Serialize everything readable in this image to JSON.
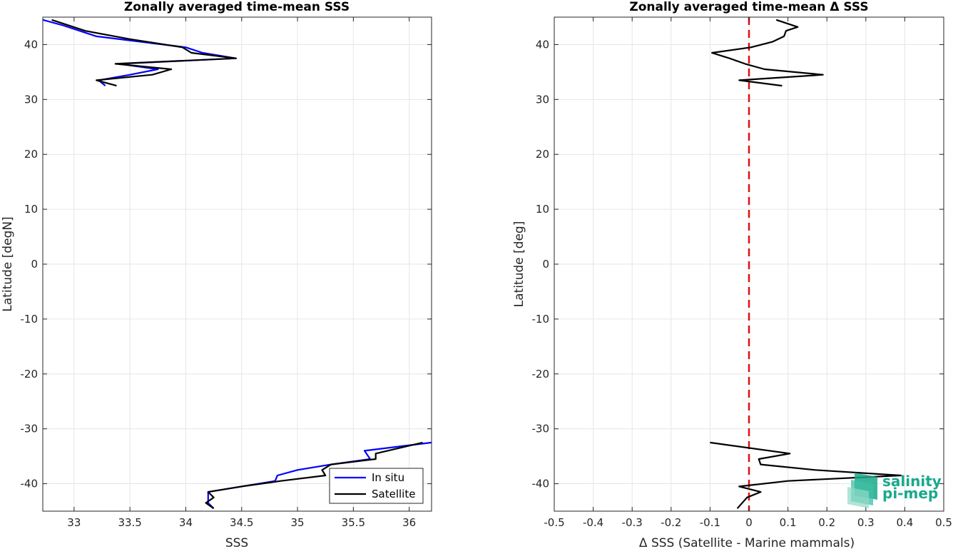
{
  "chart_data": [
    {
      "type": "line",
      "title": "Zonally averaged time-mean SSS",
      "xlabel": "SSS",
      "ylabel": "Latitude [degN]",
      "xlim": [
        32.72,
        36.2
      ],
      "ylim": [
        -45,
        45
      ],
      "xticks": [
        "33",
        "33.5",
        "34",
        "34.5",
        "35",
        "35.5",
        "36"
      ],
      "yticks": [
        "40",
        "30",
        "20",
        "10",
        "0",
        "-10",
        "-20",
        "-30",
        "-40"
      ],
      "grid": true,
      "legend_placement": "bottom-right",
      "series": [
        {
          "name": "In situ",
          "color": "#0000ff",
          "segments": [
            [
              [
                33.28,
                32.5
              ],
              [
                33.22,
                33.5
              ],
              [
                33.5,
                34.5
              ],
              [
                33.75,
                35.5
              ],
              [
                33.4,
                36.5
              ],
              [
                34.45,
                37.5
              ],
              [
                34.15,
                38.5
              ],
              [
                34.0,
                39.5
              ],
              [
                33.2,
                41.5
              ],
              [
                32.9,
                43.5
              ],
              [
                32.72,
                44.5
              ]
            ],
            [
              [
                36.2,
                -32.5
              ],
              [
                35.6,
                -34
              ],
              [
                35.65,
                -35.5
              ],
              [
                35.3,
                -36.5
              ],
              [
                35.0,
                -37.5
              ],
              [
                34.82,
                -38.5
              ],
              [
                34.8,
                -39.5
              ],
              [
                34.5,
                -40.5
              ],
              [
                34.2,
                -41.5
              ],
              [
                34.2,
                -43.5
              ],
              [
                34.25,
                -44.5
              ]
            ]
          ]
        },
        {
          "name": "Satellite",
          "color": "#000000",
          "segments": [
            [
              [
                33.38,
                32.5
              ],
              [
                33.2,
                33.5
              ],
              [
                33.7,
                34.5
              ],
              [
                33.87,
                35.5
              ],
              [
                33.37,
                36.5
              ],
              [
                34.45,
                37.5
              ],
              [
                34.05,
                38.5
              ],
              [
                33.97,
                39.5
              ],
              [
                33.5,
                41
              ],
              [
                33.1,
                42.5
              ],
              [
                32.8,
                44.5
              ]
            ],
            [
              [
                36.12,
                -32.5
              ],
              [
                35.7,
                -34.5
              ],
              [
                35.7,
                -35.5
              ],
              [
                35.3,
                -36.5
              ],
              [
                35.22,
                -37.5
              ],
              [
                35.25,
                -38.5
              ],
              [
                34.85,
                -39.5
              ],
              [
                34.5,
                -40.5
              ],
              [
                34.2,
                -41.5
              ],
              [
                34.25,
                -42.5
              ],
              [
                34.18,
                -43.5
              ],
              [
                34.25,
                -44.5
              ]
            ]
          ]
        }
      ]
    },
    {
      "type": "line",
      "title": "Zonally averaged time-mean Δ SSS",
      "xlabel": "Δ SSS (Satellite - Marine mammals)",
      "ylabel": "Latitude [deg]",
      "xlim": [
        -0.5,
        0.5
      ],
      "ylim": [
        -45,
        45
      ],
      "xticks": [
        "-0.5",
        "-0.4",
        "-0.3",
        "-0.2",
        "-0.1",
        "0",
        "0.1",
        "0.2",
        "0.3",
        "0.4",
        "0.5"
      ],
      "yticks": [
        "40",
        "30",
        "20",
        "10",
        "0",
        "-10",
        "-20",
        "-30",
        "-40"
      ],
      "grid": true,
      "reference_line": {
        "x": 0,
        "color": "#e01010",
        "style": "dashed"
      },
      "series": [
        {
          "color": "#000000",
          "segments": [
            [
              [
                0.085,
                32.5
              ],
              [
                -0.025,
                33.5
              ],
              [
                0.19,
                34.5
              ],
              [
                0.04,
                35.5
              ],
              [
                -0.01,
                36.5
              ],
              [
                -0.05,
                37.5
              ],
              [
                -0.095,
                38.5
              ],
              [
                0.005,
                39.5
              ],
              [
                0.06,
                40.5
              ],
              [
                0.09,
                41.5
              ],
              [
                0.095,
                42.5
              ],
              [
                0.125,
                43.2
              ],
              [
                0.07,
                44.5
              ]
            ],
            [
              [
                -0.1,
                -32.5
              ],
              [
                0.105,
                -34.5
              ],
              [
                0.025,
                -35.5
              ],
              [
                0.03,
                -36.5
              ],
              [
                0.17,
                -37.5
              ],
              [
                0.39,
                -38.5
              ],
              [
                0.1,
                -39.5
              ],
              [
                -0.025,
                -40.5
              ],
              [
                0.03,
                -41.5
              ],
              [
                -0.005,
                -42.5
              ],
              [
                -0.03,
                -44.5
              ]
            ]
          ]
        }
      ]
    }
  ],
  "logo": {
    "line1": "salinity",
    "line2": "pi-mep",
    "color": "#1aa88c"
  }
}
